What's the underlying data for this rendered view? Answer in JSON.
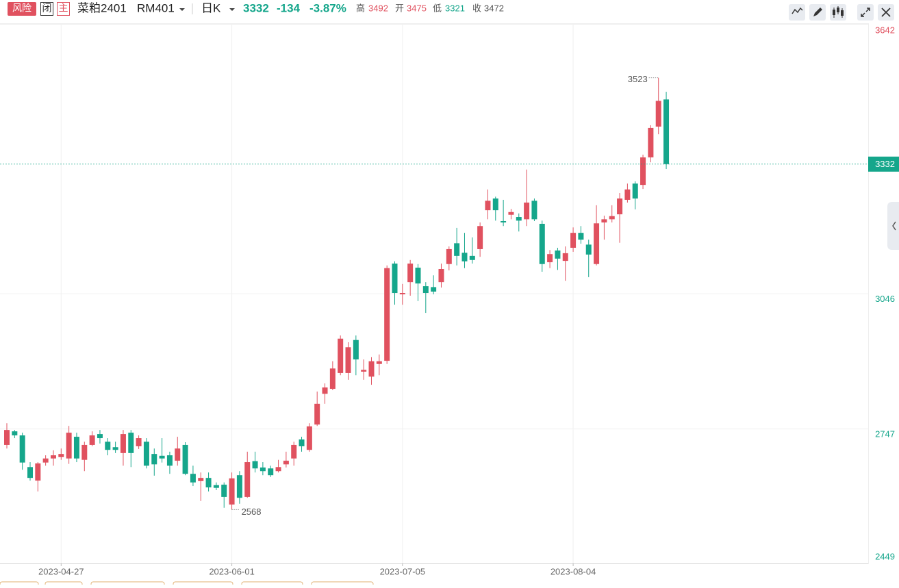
{
  "header": {
    "risk": "风险",
    "closed": "闭",
    "main": "主",
    "name": "菜粕2401",
    "code": "RM401",
    "period": "日K",
    "change": "-134",
    "change_pct": "-3.87%",
    "high_label": "高",
    "open_label": "开",
    "low_label": "低",
    "close_label": "收"
  },
  "chart_data": {
    "type": "candlestick",
    "categories": [
      null,
      null,
      null,
      null,
      null,
      null,
      null,
      "2023-04-27",
      null,
      null,
      null,
      null,
      null,
      null,
      null,
      null,
      null,
      null,
      null,
      null,
      null,
      null,
      null,
      null,
      null,
      null,
      null,
      null,
      null,
      "2023-06-01",
      null,
      null,
      null,
      null,
      null,
      null,
      null,
      null,
      null,
      null,
      null,
      null,
      null,
      null,
      null,
      null,
      null,
      null,
      null,
      null,
      null,
      "2023-07-05",
      null,
      null,
      null,
      null,
      null,
      null,
      null,
      null,
      null,
      null,
      null,
      null,
      null,
      null,
      null,
      null,
      null,
      null,
      null,
      null,
      null,
      "2023-08-04",
      null,
      null,
      null,
      null,
      null,
      null,
      null,
      null,
      null,
      null,
      null,
      null
    ],
    "open": [
      2711,
      2741,
      2732,
      2662,
      2632,
      2672,
      2681,
      2684,
      2681,
      2729,
      2678,
      2711,
      2735,
      2718,
      2706,
      2693,
      2738,
      2708,
      2718,
      2691,
      2687,
      2688,
      2676,
      2711,
      2647,
      2631,
      2638,
      2622,
      2623,
      2579,
      2644,
      2596,
      2675,
      2661,
      2659,
      2653,
      2668,
      2681,
      2723,
      2700,
      2756,
      2824,
      2835,
      2870,
      2870,
      2943,
      2873,
      2862,
      2890,
      2897,
      3112,
      3044,
      3071,
      3103,
      3062,
      3060,
      3071,
      3111,
      3157,
      3136,
      3129,
      3144,
      3230,
      3256,
      3206,
      3220,
      3215,
      3210,
      3251,
      3200,
      3115,
      3141,
      3118,
      3147,
      3180,
      3154,
      3111,
      3203,
      3210,
      3221,
      3253,
      3289,
      3286,
      3347,
      3415,
      3475
    ],
    "high": [
      2759,
      2744,
      2738,
      2673,
      2673,
      2688,
      2699,
      2703,
      2753,
      2738,
      2718,
      2741,
      2744,
      2726,
      2718,
      2744,
      2744,
      2732,
      2726,
      2703,
      2726,
      2696,
      2729,
      2717,
      2665,
      2650,
      2650,
      2628,
      2628,
      2650,
      2653,
      2696,
      2696,
      2673,
      2665,
      2678,
      2696,
      2718,
      2729,
      2759,
      2829,
      2847,
      2896,
      2953,
      2938,
      2953,
      2900,
      2905,
      2911,
      3108,
      3117,
      3067,
      3120,
      3111,
      3071,
      3086,
      3112,
      3150,
      3191,
      3180,
      3170,
      3203,
      3276,
      3260,
      3253,
      3233,
      3223,
      3320,
      3256,
      3207,
      3142,
      3147,
      3150,
      3192,
      3195,
      3165,
      3241,
      3218,
      3241,
      3268,
      3289,
      3294,
      3353,
      3418,
      3523,
      3492
    ],
    "low": [
      2703,
      2726,
      2656,
      2632,
      2608,
      2665,
      2665,
      2678,
      2669,
      2673,
      2653,
      2708,
      2714,
      2688,
      2693,
      2665,
      2662,
      2702,
      2659,
      2643,
      2672,
      2647,
      2665,
      2644,
      2620,
      2587,
      2608,
      2611,
      2572,
      2568,
      2581,
      2594,
      2650,
      2644,
      2640,
      2650,
      2661,
      2665,
      2696,
      2696,
      2753,
      2802,
      2832,
      2865,
      2855,
      2865,
      2855,
      2844,
      2865,
      2890,
      3021,
      3021,
      3041,
      3029,
      3003,
      3044,
      3059,
      3097,
      3108,
      3102,
      3112,
      3127,
      3210,
      3207,
      3195,
      3210,
      3183,
      3195,
      3206,
      3094,
      3102,
      3098,
      3074,
      3138,
      3156,
      3082,
      3108,
      3165,
      3203,
      3158,
      3247,
      3232,
      3277,
      3336,
      3398,
      3321
    ],
    "close": [
      2744,
      2732,
      2672,
      2638,
      2670,
      2681,
      2688,
      2691,
      2738,
      2681,
      2711,
      2732,
      2726,
      2700,
      2700,
      2735,
      2693,
      2726,
      2665,
      2668,
      2681,
      2665,
      2703,
      2647,
      2628,
      2638,
      2617,
      2616,
      2596,
      2637,
      2594,
      2673,
      2659,
      2653,
      2644,
      2662,
      2676,
      2711,
      2708,
      2752,
      2802,
      2838,
      2880,
      2946,
      2927,
      2900,
      2877,
      2896,
      2896,
      3102,
      3047,
      3047,
      3112,
      3068,
      3047,
      3050,
      3100,
      3144,
      3129,
      3117,
      3120,
      3195,
      3251,
      3230,
      3203,
      3226,
      3207,
      3247,
      3210,
      3111,
      3133,
      3123,
      3135,
      3180,
      3165,
      3132,
      3201,
      3210,
      3217,
      3256,
      3276,
      3256,
      3347,
      3412,
      3472,
      3332
    ],
    "up_color": "#e0515f",
    "down_color": "#15a68b",
    "ylim": [
      2449,
      3642
    ],
    "yticks": [
      2449,
      2747,
      3046,
      3642
    ],
    "grid": true
  }
}
